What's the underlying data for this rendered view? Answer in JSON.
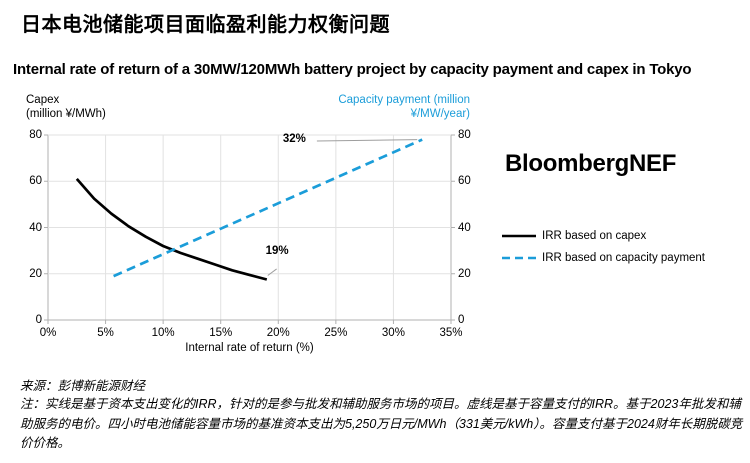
{
  "page": {
    "title": "日本电池储能项目面临盈利能力权衡问题",
    "subtitle": "Internal rate of return of a 30MW/120MWh battery project by capacity payment and capex in Tokyo"
  },
  "branding": {
    "logo": "BloombergNEF"
  },
  "axes": {
    "left_line1": "Capex",
    "left_line2": "(million ¥/MWh)",
    "right_line1": "Capacity payment (million",
    "right_line2": "¥/MW/year)"
  },
  "legend": [
    {
      "label": "IRR based on capex",
      "style": "solid",
      "color": "#000000"
    },
    {
      "label": "IRR based on capacity payment",
      "style": "dashed",
      "color": "#1b9dd9"
    }
  ],
  "colors": {
    "accent_blue": "#1b9dd9",
    "line_black": "#000000",
    "grid": "#e2e2e2",
    "axis": "#b0b0b0",
    "connector": "#9e9e9e"
  },
  "chart_data": {
    "type": "line",
    "title": "Internal rate of return of a 30MW/120MWh battery project by capacity payment and capex in Tokyo",
    "xlabel": "Internal rate of return (%)",
    "ylabel_left": "Capex (million ¥/MWh)",
    "ylabel_right": "Capacity payment (million ¥/MW/year)",
    "xlim": [
      0,
      35
    ],
    "ylim": [
      0,
      80
    ],
    "grid": true,
    "legend_position": "right",
    "x_ticks": [
      {
        "value": 0,
        "label": "0%"
      },
      {
        "value": 5,
        "label": "5%"
      },
      {
        "value": 10,
        "label": "10%"
      },
      {
        "value": 15,
        "label": "15%"
      },
      {
        "value": 20,
        "label": "20%"
      },
      {
        "value": 25,
        "label": "25%"
      },
      {
        "value": 30,
        "label": "30%"
      },
      {
        "value": 35,
        "label": "35%"
      }
    ],
    "y_ticks": [
      {
        "value": 0,
        "label": "0"
      },
      {
        "value": 20,
        "label": "20"
      },
      {
        "value": 40,
        "label": "40"
      },
      {
        "value": 60,
        "label": "60"
      },
      {
        "value": 80,
        "label": "80"
      }
    ],
    "series": [
      {
        "name": "IRR based on capex",
        "style": "solid",
        "color": "#000000",
        "x": [
          2.5,
          4,
          5.5,
          7,
          8.5,
          10,
          11.5,
          13,
          14.5,
          16,
          17.5,
          19
        ],
        "y": [
          61,
          52.5,
          46,
          40.5,
          36,
          32,
          29,
          26.5,
          24,
          21.5,
          19.5,
          17.5
        ]
      },
      {
        "name": "IRR based on capacity payment",
        "style": "dashed",
        "color": "#1b9dd9",
        "x": [
          5.7,
          32.5
        ],
        "y": [
          19,
          78
        ]
      }
    ],
    "annotations": [
      {
        "label": "32%",
        "x": 32.5,
        "y": 78,
        "label_x": 20.4,
        "label_y": 77.4
      },
      {
        "label": "19%",
        "x": 19,
        "y": 17.5,
        "label_x": 18.9,
        "label_y": 29
      }
    ]
  },
  "footer": {
    "source": "来源：彭博新能源财经",
    "note": "注：实线是基于资本支出变化的IRR，针对的是参与批发和辅助服务市场的项目。虚线是基于容量支付的IRR。基于2023年批发和辅助服务的电价。四小时电池储能容量市场的基准资本支出为5,250万日元/MWh（331美元/kWh）。容量支付基于2024财年长期脱碳竞价价格。"
  }
}
